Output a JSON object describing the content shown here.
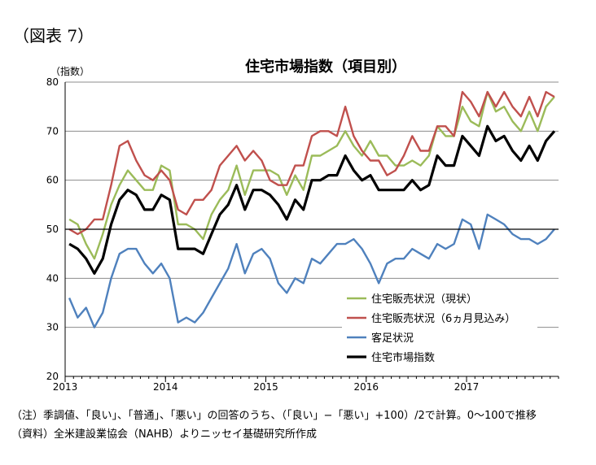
{
  "figure_label": "（図表 7）",
  "notes": [
    "（注）季調値、「良い」、「普通」、「悪い」の回答のうち、（「良い」−「悪い」+100）/2で計算。0〜100で推移",
    "（資料）全米建設業協会（NAHB）よりニッセイ基礎研究所作成"
  ],
  "chart_data": {
    "type": "line",
    "title": "住宅市場指数（項目別）",
    "ylabel": "（指数）",
    "xlabel": "",
    "ylim": [
      20,
      80
    ],
    "yticks": [
      20,
      30,
      40,
      50,
      60,
      70,
      80
    ],
    "x_start": "2013-01",
    "x_end": "2017-11",
    "x_tick_labels": [
      "2013",
      "2014",
      "2015",
      "2016",
      "2017"
    ],
    "reference_line": 50,
    "grid": "horizontal",
    "legend_position": "bottom-right",
    "series": [
      {
        "name": "住宅販売状況（現状）",
        "color": "#9bbb59",
        "values": [
          52,
          51,
          47,
          44,
          49,
          55,
          59,
          62,
          60,
          58,
          58,
          63,
          62,
          51,
          51,
          50,
          48,
          53,
          56,
          58,
          63,
          57,
          62,
          62,
          62,
          61,
          57,
          61,
          58,
          65,
          65,
          66,
          67,
          70,
          67,
          65,
          68,
          65,
          65,
          63,
          63,
          64,
          63,
          65,
          71,
          69,
          69,
          75,
          72,
          71,
          78,
          74,
          75,
          72,
          70,
          74,
          70,
          75,
          77
        ]
      },
      {
        "name": "住宅販売状況（6ヵ月見込み）",
        "color": "#c0504d",
        "values": [
          50,
          49,
          50,
          52,
          52,
          59,
          67,
          68,
          64,
          61,
          60,
          62,
          60,
          54,
          53,
          56,
          56,
          58,
          63,
          65,
          67,
          64,
          66,
          64,
          60,
          59,
          59,
          63,
          63,
          69,
          70,
          70,
          69,
          75,
          69,
          66,
          64,
          64,
          61,
          62,
          65,
          69,
          66,
          66,
          71,
          71,
          69,
          78,
          76,
          73,
          78,
          75,
          78,
          75,
          73,
          77,
          73,
          78,
          77
        ]
      },
      {
        "name": "客足状況",
        "color": "#4f81bd",
        "values": [
          36,
          32,
          34,
          30,
          33,
          40,
          45,
          46,
          46,
          43,
          41,
          43,
          40,
          31,
          32,
          31,
          33,
          36,
          39,
          42,
          47,
          41,
          45,
          46,
          44,
          39,
          37,
          40,
          39,
          44,
          43,
          45,
          47,
          47,
          48,
          46,
          43,
          39,
          43,
          44,
          44,
          46,
          45,
          44,
          47,
          46,
          47,
          52,
          51,
          46,
          53,
          52,
          51,
          49,
          48,
          48,
          47,
          48,
          50
        ]
      },
      {
        "name": "住宅市場指数",
        "color": "#000000",
        "values": [
          47,
          46,
          44,
          41,
          44,
          51,
          56,
          58,
          57,
          54,
          54,
          57,
          56,
          46,
          46,
          46,
          45,
          49,
          53,
          55,
          59,
          54,
          58,
          58,
          57,
          55,
          52,
          56,
          54,
          60,
          60,
          61,
          61,
          65,
          62,
          60,
          61,
          58,
          58,
          58,
          58,
          60,
          58,
          59,
          65,
          63,
          63,
          69,
          67,
          65,
          71,
          68,
          69,
          66,
          64,
          67,
          64,
          68,
          70
        ]
      }
    ]
  }
}
